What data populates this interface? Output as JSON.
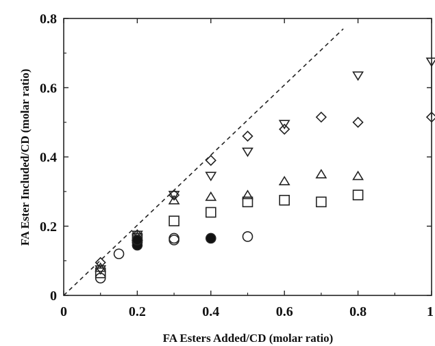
{
  "chart_data": {
    "type": "scatter",
    "title": "",
    "xlabel": "FA Esters Added/CD (molar ratio)",
    "ylabel": "FA Ester Included/CD (molar ratio)",
    "xlim": [
      0,
      1
    ],
    "ylim": [
      0,
      0.8
    ],
    "x_ticks": [
      "0",
      "0.2",
      "0.4",
      "0.6",
      "0.8",
      "1"
    ],
    "y_ticks": [
      "0",
      "0.2",
      "0.4",
      "0.6",
      "0.8"
    ],
    "grid": false,
    "legend": "none",
    "reference_line": {
      "style": "dashed",
      "x": [
        0,
        0.76
      ],
      "y": [
        0,
        0.77
      ]
    },
    "series": [
      {
        "marker": "diamond",
        "points": [
          [
            0.1,
            0.095
          ],
          [
            0.2,
            0.175
          ],
          [
            0.3,
            0.29
          ],
          [
            0.4,
            0.39
          ],
          [
            0.5,
            0.46
          ],
          [
            0.6,
            0.48
          ],
          [
            0.7,
            0.515
          ],
          [
            0.8,
            0.5
          ],
          [
            1.0,
            0.515
          ]
        ]
      },
      {
        "marker": "triangle-down",
        "points": [
          [
            0.1,
            0.075
          ],
          [
            0.2,
            0.175
          ],
          [
            0.3,
            0.29
          ],
          [
            0.4,
            0.345
          ],
          [
            0.5,
            0.415
          ],
          [
            0.6,
            0.495
          ],
          [
            0.8,
            0.635
          ],
          [
            1.0,
            0.675
          ]
        ]
      },
      {
        "marker": "triangle-up",
        "points": [
          [
            0.1,
            0.08
          ],
          [
            0.2,
            0.17
          ],
          [
            0.3,
            0.275
          ],
          [
            0.4,
            0.285
          ],
          [
            0.5,
            0.29
          ],
          [
            0.6,
            0.33
          ],
          [
            0.7,
            0.35
          ],
          [
            0.8,
            0.345
          ]
        ]
      },
      {
        "marker": "square",
        "points": [
          [
            0.1,
            0.065
          ],
          [
            0.2,
            0.165
          ],
          [
            0.3,
            0.215
          ],
          [
            0.4,
            0.24
          ],
          [
            0.5,
            0.27
          ],
          [
            0.6,
            0.275
          ],
          [
            0.7,
            0.27
          ],
          [
            0.8,
            0.29
          ]
        ]
      },
      {
        "marker": "circle-open",
        "points": [
          [
            0.1,
            0.05
          ],
          [
            0.15,
            0.12
          ],
          [
            0.2,
            0.155
          ],
          [
            0.3,
            0.16
          ],
          [
            0.3,
            0.165
          ],
          [
            0.5,
            0.17
          ]
        ]
      },
      {
        "marker": "circle-filled",
        "points": [
          [
            0.2,
            0.145
          ],
          [
            0.2,
            0.16
          ],
          [
            0.4,
            0.165
          ]
        ]
      }
    ],
    "error_bars": [
      {
        "x": 1.0,
        "y_low": 0.515,
        "y_high": 0.675
      }
    ]
  }
}
